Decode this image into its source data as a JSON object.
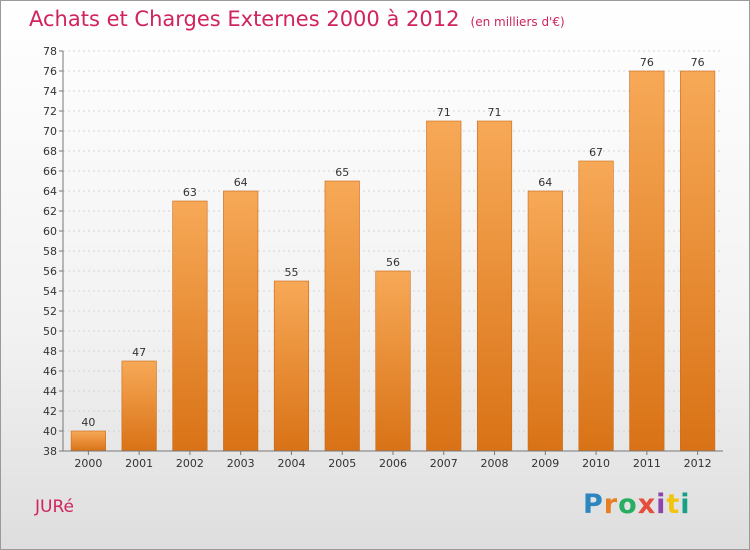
{
  "header": {
    "title": "Achats et Charges Externes 2000 à 2012",
    "unit": "(en milliers d'€)"
  },
  "footer": {
    "commune": "JURé",
    "brand_letters": [
      "P",
      "r",
      "o",
      "x",
      "i",
      "t",
      "i"
    ],
    "brand_colors": [
      "#2e86c1",
      "#e67e22",
      "#27ae60",
      "#e74c3c",
      "#8e44ad",
      "#f1c40f",
      "#16a085"
    ]
  },
  "chart_data": {
    "type": "bar",
    "categories": [
      "2000",
      "2001",
      "2002",
      "2003",
      "2004",
      "2005",
      "2006",
      "2007",
      "2008",
      "2009",
      "2010",
      "2011",
      "2012"
    ],
    "values": [
      40,
      47,
      63,
      64,
      55,
      65,
      56,
      71,
      71,
      64,
      67,
      76,
      76
    ],
    "title": "Achats et Charges Externes 2000 à 2012",
    "ylim": [
      38,
      78
    ],
    "yticks": [
      38,
      40,
      42,
      44,
      46,
      48,
      50,
      52,
      54,
      56,
      58,
      60,
      62,
      64,
      66,
      68,
      70,
      72,
      74,
      76,
      78
    ],
    "grid": true,
    "bar_color": "#f0a050"
  }
}
